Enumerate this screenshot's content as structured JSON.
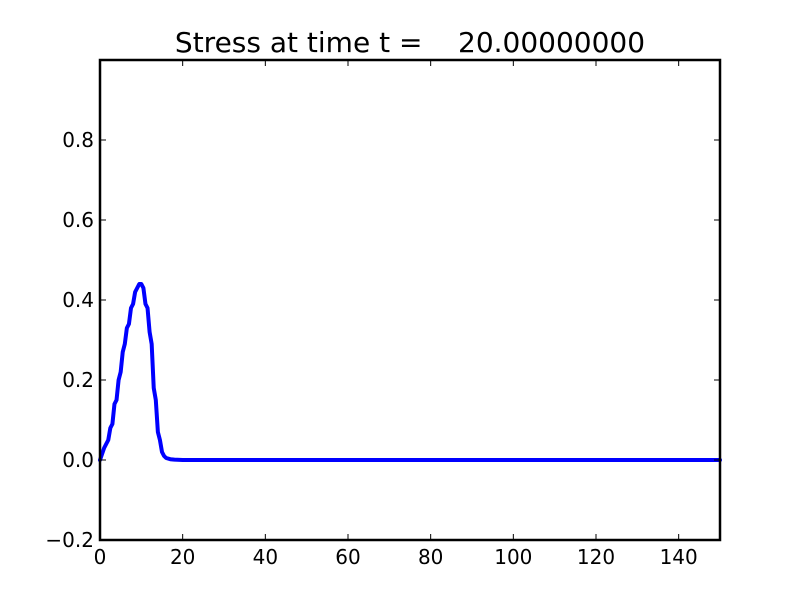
{
  "chart_data": {
    "type": "line",
    "title": "Stress at time t =    20.00000000",
    "xlabel": "",
    "ylabel": "",
    "xlim": [
      0,
      150
    ],
    "ylim": [
      -0.2,
      1.0
    ],
    "x_ticks": [
      0,
      20,
      40,
      60,
      80,
      100,
      120,
      140
    ],
    "x_tick_labels": [
      "0",
      "20",
      "40",
      "60",
      "80",
      "100",
      "120",
      "140"
    ],
    "y_ticks": [
      -0.2,
      0.0,
      0.2,
      0.4,
      0.6,
      0.8
    ],
    "y_tick_labels": [
      "−0.2",
      "0.0",
      "0.2",
      "0.4",
      "0.6",
      "0.8"
    ],
    "grid": false,
    "series": [
      {
        "color": "#0000ff",
        "x": [
          0,
          1,
          2,
          2.5,
          3,
          3.5,
          4,
          4.5,
          5,
          5.5,
          6,
          6.5,
          7,
          7.5,
          8,
          8.5,
          9,
          9.5,
          10,
          10.5,
          11,
          11.5,
          12,
          12.5,
          13,
          13.5,
          14,
          14.5,
          15,
          15.5,
          16,
          17,
          18,
          20,
          30,
          50,
          80,
          100,
          120,
          150
        ],
        "y": [
          0.0,
          0.03,
          0.05,
          0.08,
          0.09,
          0.14,
          0.15,
          0.2,
          0.22,
          0.27,
          0.29,
          0.33,
          0.34,
          0.38,
          0.39,
          0.42,
          0.43,
          0.44,
          0.44,
          0.43,
          0.39,
          0.38,
          0.32,
          0.29,
          0.18,
          0.15,
          0.07,
          0.05,
          0.02,
          0.01,
          0.005,
          0.002,
          0.001,
          0.0,
          0.0,
          0.0,
          0.0,
          0.0,
          0.0,
          0.0
        ]
      }
    ]
  }
}
